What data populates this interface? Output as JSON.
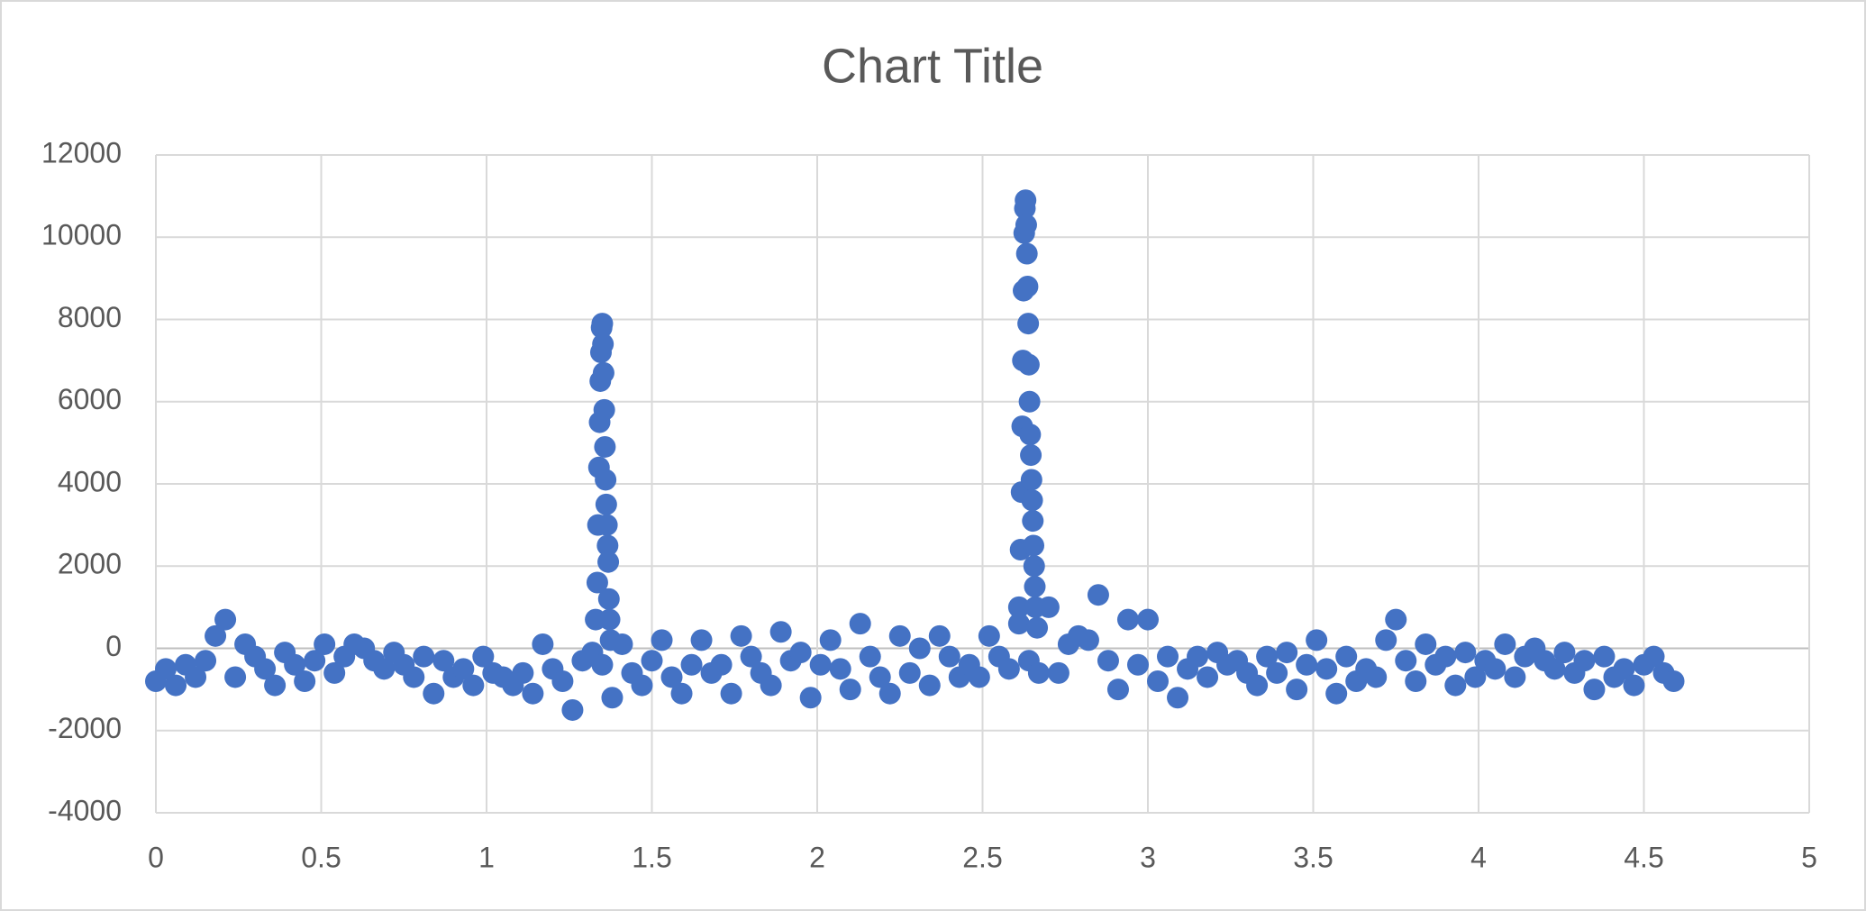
{
  "chart_data": {
    "type": "scatter",
    "title": "Chart Title",
    "color": "#4472c4",
    "grid": true,
    "xlim": [
      0,
      5
    ],
    "xticks": [
      0,
      0.5,
      1,
      1.5,
      2,
      2.5,
      3,
      3.5,
      4,
      4.5,
      5
    ],
    "ylim": [
      -4000,
      12000
    ],
    "yticks": [
      -4000,
      -2000,
      0,
      2000,
      4000,
      6000,
      8000,
      10000,
      12000
    ],
    "x": [
      0,
      0.03,
      0.06,
      0.09,
      0.12,
      0.15,
      0.18,
      0.21,
      0.24,
      0.27,
      0.3,
      0.33,
      0.36,
      0.39,
      0.42,
      0.45,
      0.48,
      0.51,
      0.54,
      0.57,
      0.6,
      0.63,
      0.66,
      0.69,
      0.72,
      0.75,
      0.78,
      0.81,
      0.84,
      0.87,
      0.9,
      0.93,
      0.96,
      0.99,
      1.02,
      1.05,
      1.08,
      1.11,
      1.14,
      1.17,
      1.2,
      1.23,
      1.26,
      1.29,
      1.32,
      1.35,
      1.38,
      1.41,
      1.44,
      1.47,
      1.5,
      1.53,
      1.56,
      1.59,
      1.62,
      1.65,
      1.68,
      1.71,
      1.74,
      1.77,
      1.8,
      1.83,
      1.86,
      1.89,
      1.92,
      1.95,
      1.98,
      2.01,
      2.04,
      2.07,
      2.1,
      2.13,
      2.16,
      2.19,
      2.22,
      2.25,
      2.28,
      2.31,
      2.34,
      2.37,
      2.4,
      2.43,
      2.46,
      2.49,
      2.52,
      2.55,
      2.58,
      2.61,
      2.64,
      2.67,
      2.7,
      2.73,
      2.76,
      2.79,
      2.82,
      2.85,
      2.88,
      2.91,
      2.94,
      2.97,
      3,
      3.03,
      3.06,
      3.09,
      3.12,
      3.15,
      3.18,
      3.21,
      3.24,
      3.27,
      3.3,
      3.33,
      3.36,
      3.39,
      3.42,
      3.45,
      3.48,
      3.51,
      3.54,
      3.57,
      3.6,
      3.63,
      3.66,
      3.69,
      3.72,
      3.75,
      3.78,
      3.81,
      3.84,
      3.87,
      3.9,
      3.93,
      3.96,
      3.99,
      4.02,
      4.05,
      4.08,
      4.11,
      4.14,
      4.17,
      4.2,
      4.23,
      4.26,
      4.29,
      4.32,
      4.35,
      4.38,
      4.41,
      4.44,
      4.47,
      4.5,
      4.53,
      4.56,
      4.59,
      1.33,
      1.335,
      1.337,
      1.34,
      1.342,
      1.344,
      1.346,
      1.348,
      1.35,
      1.352,
      1.354,
      1.356,
      1.358,
      1.36,
      1.362,
      1.364,
      1.366,
      1.368,
      1.37,
      1.372,
      1.375,
      2.61,
      2.615,
      2.618,
      2.62,
      2.622,
      2.624,
      2.626,
      2.628,
      2.63,
      2.632,
      2.634,
      2.636,
      2.638,
      2.64,
      2.642,
      2.644,
      2.646,
      2.648,
      2.65,
      2.652,
      2.654,
      2.656,
      2.658,
      2.66,
      2.665
    ],
    "values": [
      -800,
      -500,
      -900,
      -400,
      -700,
      -300,
      300,
      700,
      -700,
      100,
      -200,
      -500,
      -900,
      -100,
      -400,
      -800,
      -300,
      100,
      -600,
      -200,
      100,
      0,
      -300,
      -500,
      -100,
      -400,
      -700,
      -200,
      -1100,
      -300,
      -700,
      -500,
      -900,
      -200,
      -600,
      -700,
      -900,
      -600,
      -1100,
      100,
      -500,
      -800,
      -1500,
      -300,
      -100,
      -400,
      -1200,
      100,
      -600,
      -900,
      -300,
      200,
      -700,
      -1100,
      -400,
      200,
      -600,
      -400,
      -1100,
      300,
      -200,
      -600,
      -900,
      400,
      -300,
      -100,
      -1200,
      -400,
      200,
      -500,
      -1000,
      600,
      -200,
      -700,
      -1100,
      300,
      -600,
      0,
      -900,
      300,
      -200,
      -700,
      -400,
      -700,
      300,
      -200,
      -500,
      600,
      -300,
      -600,
      1000,
      -600,
      100,
      300,
      200,
      1300,
      -300,
      -1000,
      700,
      -400,
      700,
      -800,
      -200,
      -1200,
      -500,
      -200,
      -700,
      -100,
      -400,
      -300,
      -600,
      -900,
      -200,
      -600,
      -100,
      -1000,
      -400,
      200,
      -500,
      -1100,
      -200,
      -800,
      -500,
      -700,
      200,
      700,
      -300,
      -800,
      100,
      -400,
      -200,
      -900,
      -100,
      -700,
      -300,
      -500,
      100,
      -700,
      -200,
      0,
      -300,
      -500,
      -100,
      -600,
      -300,
      -1000,
      -200,
      -700,
      -500,
      -900,
      -400,
      -200,
      -600,
      -800,
      700,
      1600,
      3000,
      4400,
      5500,
      6500,
      7200,
      7800,
      7900,
      7400,
      6700,
      5800,
      4900,
      4100,
      3500,
      3000,
      2500,
      2100,
      1200,
      700,
      200,
      1000,
      2400,
      3800,
      5400,
      7000,
      8700,
      10100,
      10700,
      10900,
      10300,
      9600,
      8800,
      7900,
      6900,
      6000,
      5200,
      4700,
      4100,
      3600,
      3100,
      2500,
      2000,
      1500,
      1000,
      500
    ]
  }
}
